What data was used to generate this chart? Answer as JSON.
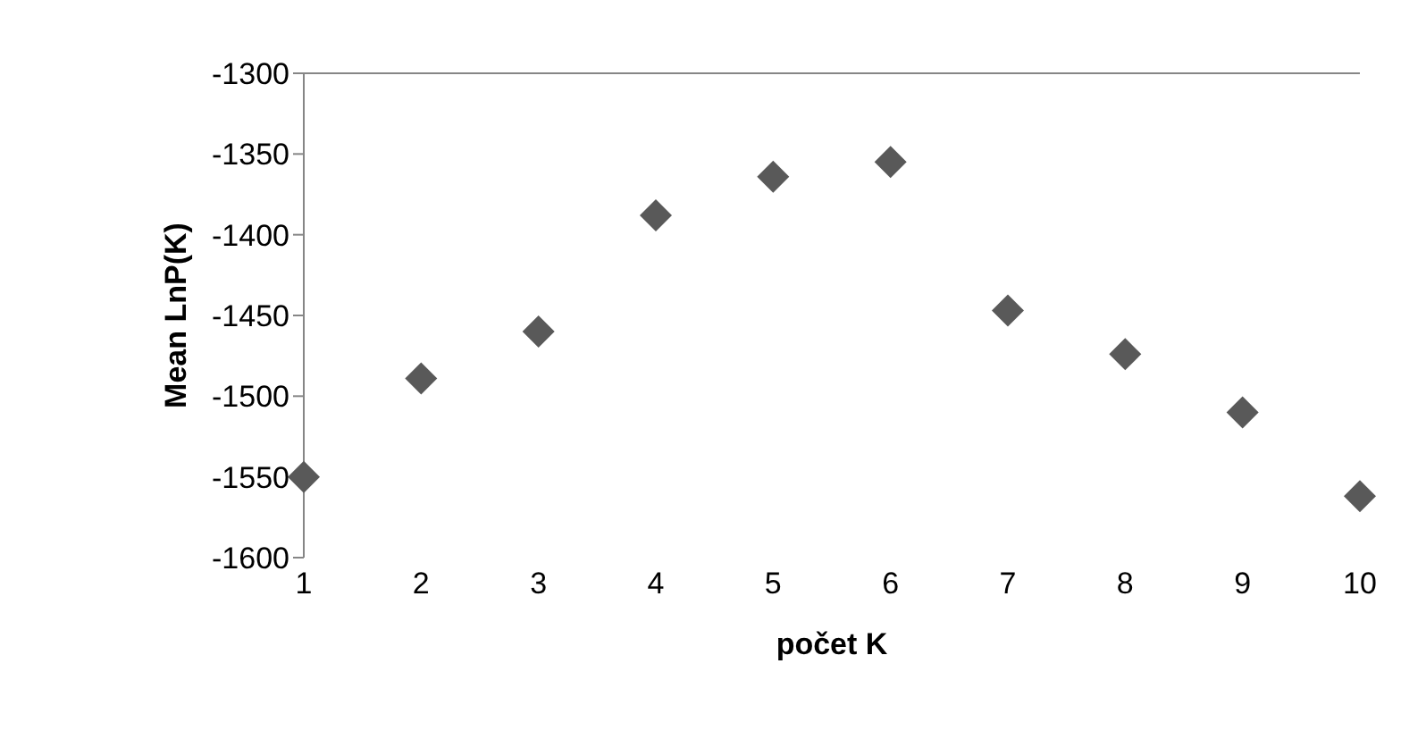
{
  "chart_data": {
    "type": "scatter",
    "xlabel": "počet K",
    "ylabel": "Mean LnP(K)",
    "x": [
      1,
      2,
      3,
      4,
      5,
      6,
      7,
      8,
      9,
      10
    ],
    "values": [
      -1550,
      -1489,
      -1460,
      -1388,
      -1364,
      -1355,
      -1447,
      -1474,
      -1510,
      -1562
    ],
    "color": "#595959",
    "marker": "diamond",
    "xlim": [
      1,
      10
    ],
    "xticks": [
      1,
      2,
      3,
      4,
      5,
      6,
      7,
      8,
      9,
      10
    ],
    "ylim": [
      -1600,
      -1300
    ],
    "yticks": [
      -1600,
      -1550,
      -1500,
      -1450,
      -1400,
      -1350,
      -1300
    ],
    "grid": false,
    "legend": false
  }
}
